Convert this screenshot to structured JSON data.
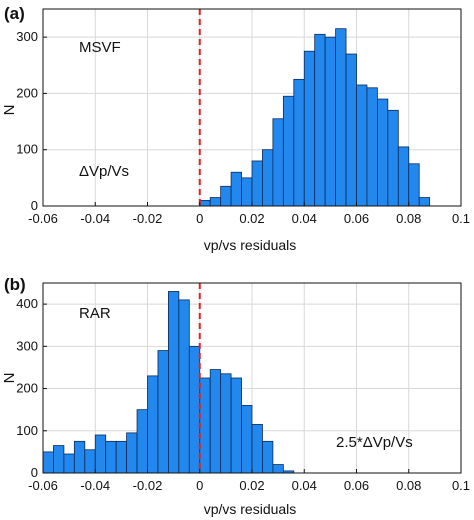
{
  "chart_data": [
    {
      "type": "bar",
      "panel_label": "(a)",
      "xlabel": "vp/vs residuals",
      "ylabel": "N",
      "xlim": [
        -0.06,
        0.1
      ],
      "ylim": [
        0,
        350
      ],
      "grid": true,
      "x_ticks": [
        -0.06,
        -0.04,
        -0.02,
        0,
        0.02,
        0.04,
        0.06,
        0.08,
        0.1
      ],
      "x_tick_labels": [
        "-0.06",
        "-0.04",
        "-0.02",
        "0",
        "0.02",
        "0.04",
        "0.06",
        "0.08",
        "0.1"
      ],
      "y_ticks": [
        0,
        100,
        200,
        300
      ],
      "y_tick_labels": [
        "0",
        "100",
        "200",
        "300"
      ],
      "bin_width": 0.004,
      "bin_start": [
        0.0,
        0.004,
        0.008,
        0.012,
        0.016,
        0.02,
        0.024,
        0.028,
        0.032,
        0.036,
        0.04,
        0.044,
        0.048,
        0.052,
        0.056,
        0.06,
        0.064,
        0.068,
        0.072,
        0.076,
        0.08,
        0.084
      ],
      "values": [
        10,
        15,
        35,
        60,
        50,
        80,
        100,
        155,
        195,
        225,
        275,
        305,
        300,
        315,
        270,
        215,
        210,
        190,
        170,
        105,
        75,
        15
      ],
      "reference_line_x": 0,
      "annotations": [
        "MSVF",
        "ΔVp/Vs"
      ]
    },
    {
      "type": "bar",
      "panel_label": "(b)",
      "xlabel": "vp/vs residuals",
      "ylabel": "N",
      "xlim": [
        -0.06,
        0.1
      ],
      "ylim": [
        0,
        450
      ],
      "grid": true,
      "x_ticks": [
        -0.06,
        -0.04,
        -0.02,
        0,
        0.02,
        0.04,
        0.06,
        0.08,
        0.1
      ],
      "x_tick_labels": [
        "-0.06",
        "-0.04",
        "-0.02",
        "0",
        "0.02",
        "0.04",
        "0.06",
        "0.08",
        "0.1"
      ],
      "y_ticks": [
        0,
        100,
        200,
        300,
        400
      ],
      "y_tick_labels": [
        "0",
        "100",
        "200",
        "300",
        "400"
      ],
      "bin_width": 0.004,
      "bin_start": [
        -0.06,
        -0.056,
        -0.052,
        -0.048,
        -0.044,
        -0.04,
        -0.036,
        -0.032,
        -0.028,
        -0.024,
        -0.02,
        -0.016,
        -0.012,
        -0.008,
        -0.004,
        0.0,
        0.004,
        0.008,
        0.012,
        0.016,
        0.02,
        0.024,
        0.028,
        0.032
      ],
      "values": [
        50,
        65,
        45,
        75,
        55,
        90,
        75,
        75,
        95,
        150,
        230,
        290,
        430,
        410,
        300,
        225,
        245,
        235,
        225,
        160,
        115,
        75,
        20,
        5
      ],
      "reference_line_x": 0,
      "annotations": [
        "RAR",
        "2.5*ΔVp/Vs"
      ]
    }
  ],
  "colors": {
    "bar_fill": "#2288ee",
    "bar_edge": "#0a2a5a",
    "reference_line": "#dd2222",
    "grid": "#d8d8d8",
    "axes": "#111111"
  }
}
